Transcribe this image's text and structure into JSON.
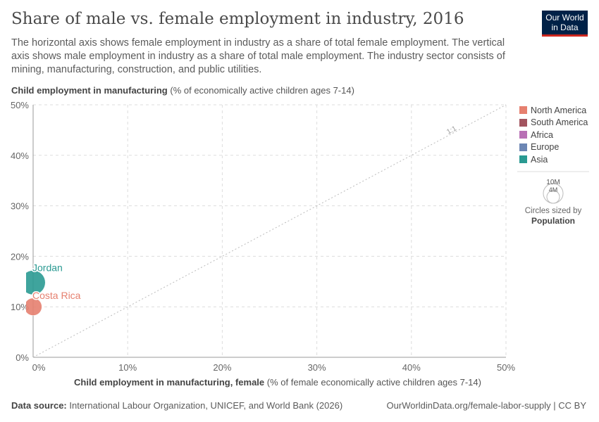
{
  "title": "Share of male vs. female employment in industry, 2016",
  "subtitle": "The horizontal axis shows female employment in industry as a share of total female employment. The vertical axis shows male employment in industry as a share of total male employment. The industry sector consists of mining, manufacturing, construction, and public utilities.",
  "logo": {
    "line1": "Our World",
    "line2": "in Data"
  },
  "footer": {
    "source_label": "Data source:",
    "source": "International Labour Organization, UNICEF, and World Bank (2026)",
    "url": "OurWorldinData.org/female-labor-supply | CC BY"
  },
  "size_legend": {
    "big": "10M",
    "small": "4M",
    "caption": "Circles sized by",
    "variable": "Population"
  },
  "chart_data": {
    "type": "scatter",
    "title": "Share of male vs. female employment in industry, 2016",
    "ylabel_bold": "Child employment in manufacturing",
    "ylabel_rest": " (% of economically active children ages 7-14)",
    "xlabel_bold": "Child employment in manufacturing, female",
    "xlabel_rest": " (% of female economically active children ages 7-14)",
    "xlim": [
      0,
      50
    ],
    "ylim": [
      0,
      50
    ],
    "xticks": [
      "0%",
      "10%",
      "20%",
      "30%",
      "40%",
      "50%"
    ],
    "yticks": [
      "0%",
      "10%",
      "20%",
      "30%",
      "40%",
      "50%"
    ],
    "reference_line_label": "1:1",
    "legend": [
      {
        "name": "North America",
        "color": "#e6806f"
      },
      {
        "name": "South America",
        "color": "#a2545f"
      },
      {
        "name": "Africa",
        "color": "#b870b5"
      },
      {
        "name": "Europe",
        "color": "#6c86b4"
      },
      {
        "name": "Asia",
        "color": "#2a9a92"
      }
    ],
    "points": [
      {
        "label": "Jordan",
        "x": 0,
        "y": 14.8,
        "population_millions": 9.5,
        "color": "#2a9a92"
      },
      {
        "label": "Costa Rica",
        "x": 0,
        "y": 10,
        "population_millions": 4.9,
        "color": "#e6806f"
      }
    ]
  }
}
